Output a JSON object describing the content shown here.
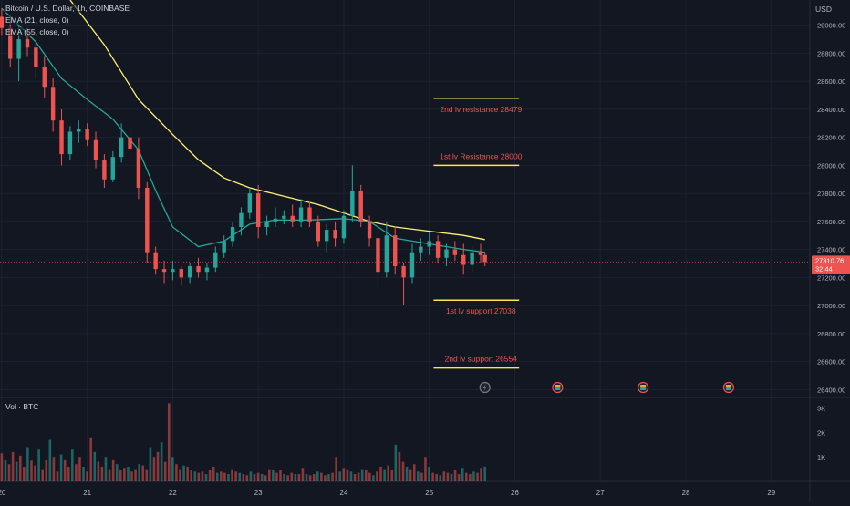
{
  "header": {
    "symbol_line": "Bitcoin / U.S. Dollar, 1h, COINBASE",
    "ema1_line": "EMA (21, close, 0)",
    "ema2_line": "EMA (55, close, 0)",
    "volume_label": "Vol · BTC"
  },
  "price_axis": {
    "currency": "USD",
    "last_price": "27310.76",
    "countdown": "32:44"
  },
  "colors": {
    "background": "#131722",
    "up": "#26a69a",
    "down": "#ef5350",
    "ema21": "#26a69a",
    "ema55": "#fff176",
    "levels": "#fbe64d",
    "level_text": "#ef5350",
    "grid": "#1e2230"
  },
  "chart_data": [
    {
      "type": "candlestick",
      "title": "Bitcoin / U.S. Dollar, 1h, COINBASE",
      "x_ticks": [
        "20",
        "21",
        "22",
        "23",
        "24",
        "25",
        "26",
        "27",
        "28",
        "29"
      ],
      "y_ticks": [
        26400,
        26600,
        26800,
        27000,
        27200,
        27400,
        27600,
        27800,
        28000,
        28200,
        28400,
        28600,
        28800,
        29000
      ],
      "ylim": [
        26350,
        29180
      ],
      "xlim": [
        19.98,
        29.45
      ],
      "grid": true,
      "candles": [
        [
          20.0,
          29060,
          29120,
          28930,
          28980
        ],
        [
          20.1,
          28980,
          29040,
          28700,
          28760
        ],
        [
          20.2,
          28760,
          28990,
          28600,
          28900
        ],
        [
          20.3,
          28900,
          28980,
          28780,
          28840
        ],
        [
          20.4,
          28840,
          28880,
          28620,
          28700
        ],
        [
          20.5,
          28700,
          28780,
          28480,
          28560
        ],
        [
          20.6,
          28560,
          28620,
          28240,
          28320
        ],
        [
          20.7,
          28320,
          28400,
          28000,
          28080
        ],
        [
          20.8,
          28080,
          28280,
          28040,
          28240
        ],
        [
          20.9,
          28240,
          28320,
          28160,
          28260
        ],
        [
          21.0,
          28260,
          28300,
          28140,
          28180
        ],
        [
          21.1,
          28180,
          28240,
          27980,
          28040
        ],
        [
          21.2,
          28040,
          28080,
          27840,
          27900
        ],
        [
          21.3,
          27900,
          28100,
          27880,
          28060
        ],
        [
          21.4,
          28060,
          28300,
          28020,
          28200
        ],
        [
          21.5,
          28200,
          28280,
          28060,
          28120
        ],
        [
          21.6,
          28120,
          28200,
          27760,
          27840
        ],
        [
          21.7,
          27840,
          27880,
          27300,
          27380
        ],
        [
          21.8,
          27380,
          27420,
          27220,
          27260
        ],
        [
          21.9,
          27260,
          27320,
          27160,
          27240
        ],
        [
          22.0,
          27240,
          27320,
          27180,
          27260
        ],
        [
          22.1,
          27260,
          27280,
          27140,
          27200
        ],
        [
          22.2,
          27200,
          27300,
          27160,
          27280
        ],
        [
          22.3,
          27280,
          27340,
          27200,
          27240
        ],
        [
          22.4,
          27240,
          27300,
          27180,
          27270
        ],
        [
          22.5,
          27270,
          27420,
          27240,
          27380
        ],
        [
          22.6,
          27380,
          27500,
          27340,
          27460
        ],
        [
          22.7,
          27460,
          27600,
          27420,
          27560
        ],
        [
          22.8,
          27560,
          27700,
          27500,
          27660
        ],
        [
          22.9,
          27660,
          27840,
          27620,
          27800
        ],
        [
          23.0,
          27800,
          27860,
          27480,
          27560
        ],
        [
          23.1,
          27560,
          27640,
          27500,
          27600
        ],
        [
          23.2,
          27600,
          27700,
          27560,
          27620
        ],
        [
          23.3,
          27620,
          27680,
          27580,
          27640
        ],
        [
          23.4,
          27640,
          27720,
          27560,
          27600
        ],
        [
          23.5,
          27600,
          27760,
          27560,
          27700
        ],
        [
          23.6,
          27700,
          27740,
          27560,
          27600
        ],
        [
          23.7,
          27600,
          27640,
          27420,
          27460
        ],
        [
          23.8,
          27460,
          27580,
          27380,
          27540
        ],
        [
          23.9,
          27540,
          27600,
          27420,
          27480
        ],
        [
          24.0,
          27480,
          27680,
          27440,
          27640
        ],
        [
          24.1,
          27640,
          28000,
          27600,
          27820
        ],
        [
          24.2,
          27820,
          27860,
          27560,
          27600
        ],
        [
          24.3,
          27600,
          27640,
          27420,
          27480
        ],
        [
          24.4,
          27480,
          27560,
          27120,
          27240
        ],
        [
          24.5,
          27240,
          27600,
          27200,
          27500
        ],
        [
          24.6,
          27500,
          27560,
          27220,
          27280
        ],
        [
          24.7,
          27280,
          27300,
          27000,
          27200
        ],
        [
          24.8,
          27200,
          27440,
          27160,
          27380
        ],
        [
          24.9,
          27380,
          27480,
          27320,
          27420
        ],
        [
          25.0,
          27420,
          27520,
          27360,
          27460
        ],
        [
          25.1,
          27460,
          27500,
          27300,
          27340
        ],
        [
          25.2,
          27340,
          27440,
          27280,
          27400
        ],
        [
          25.3,
          27400,
          27460,
          27320,
          27360
        ],
        [
          25.4,
          27360,
          27440,
          27220,
          27290
        ],
        [
          25.5,
          27290,
          27420,
          27240,
          27380
        ],
        [
          25.6,
          27380,
          27440,
          27300,
          27360
        ],
        [
          25.65,
          27360,
          27380,
          27280,
          27310
        ]
      ],
      "series": [
        {
          "name": "EMA (21, close, 0)",
          "x": [
            20.0,
            20.4,
            20.7,
            21.0,
            21.3,
            21.6,
            21.8,
            22.0,
            22.3,
            22.6,
            22.9,
            23.2,
            23.6,
            24.0,
            24.3,
            24.6,
            25.0,
            25.4,
            25.65
          ],
          "values": [
            29120,
            28880,
            28620,
            28470,
            28330,
            28110,
            27820,
            27560,
            27420,
            27460,
            27580,
            27610,
            27610,
            27620,
            27600,
            27480,
            27440,
            27400,
            27380
          ]
        },
        {
          "name": "EMA (55, close, 0)",
          "x": [
            20.8,
            21.2,
            21.6,
            22.0,
            22.3,
            22.6,
            22.9,
            23.3,
            23.7,
            24.0,
            24.3,
            24.6,
            25.0,
            25.4,
            25.65
          ],
          "values": [
            29180,
            28860,
            28470,
            28220,
            28040,
            27910,
            27840,
            27780,
            27720,
            27660,
            27600,
            27560,
            27530,
            27500,
            27470
          ]
        }
      ],
      "levels": [
        {
          "label": "2nd lv resistance 28479",
          "value": 28479
        },
        {
          "label": "1st lv Resistance 28000",
          "value": 28000
        },
        {
          "label": "1st lv support 27038",
          "value": 27038
        },
        {
          "label": "2nd lv support 26554",
          "value": 26554
        }
      ],
      "current_price": 27310.76
    },
    {
      "type": "bar",
      "title": "Vol · BTC",
      "y_ticks": [
        "1K",
        "2K",
        "3K"
      ],
      "ylim": [
        0,
        3400
      ],
      "values": [
        1150,
        900,
        700,
        1200,
        800,
        1050,
        600,
        1400,
        850,
        650,
        1300,
        500,
        900,
        1700,
        1000,
        400,
        1100,
        900,
        600,
        1300,
        700,
        1000,
        600,
        400,
        1800,
        1200,
        800,
        600,
        1000,
        500,
        900,
        700,
        450,
        550,
        600,
        400,
        500,
        700,
        650,
        500,
        1400,
        1000,
        1200,
        1600,
        800,
        3200,
        1000,
        700,
        500,
        650,
        600,
        450,
        400,
        350,
        400,
        300,
        450,
        600,
        350,
        400,
        350,
        300,
        500,
        400,
        350,
        300,
        250,
        400,
        300,
        350,
        300,
        250,
        500,
        450,
        350,
        450,
        300,
        250,
        350,
        300,
        300,
        550,
        300,
        250,
        300,
        400,
        350,
        250,
        300,
        350,
        1000,
        400,
        550,
        500,
        400,
        300,
        350,
        500,
        450,
        350,
        250,
        400,
        600,
        500,
        650,
        450,
        1500,
        1200,
        800,
        600,
        500,
        700,
        400,
        350,
        1000,
        600,
        350,
        300,
        250,
        400,
        350,
        300,
        450,
        300,
        550,
        350,
        300,
        400,
        350,
        550,
        600
      ]
    }
  ],
  "x_axis_labels": [
    "20",
    "21",
    "22",
    "23",
    "24",
    "25",
    "26",
    "27",
    "28",
    "29"
  ]
}
